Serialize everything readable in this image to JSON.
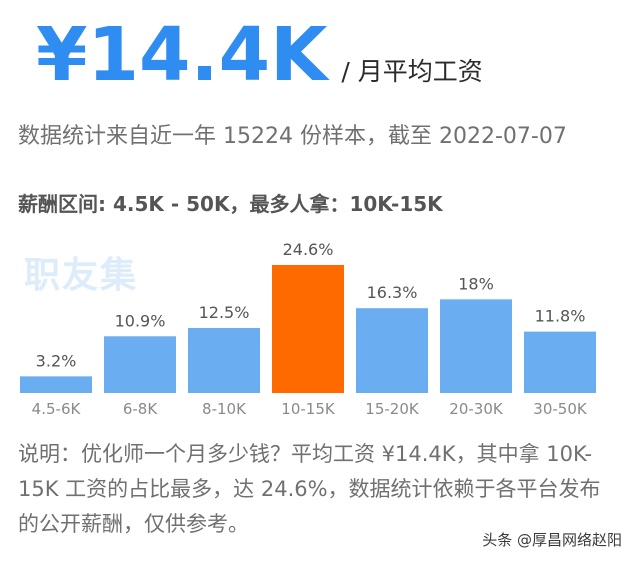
{
  "hero": {
    "amount": "¥14.4K",
    "unit": "/ 月平均工资"
  },
  "subtitle": "数据统计来自近一年 15224 份样本，截至 2022-07-07",
  "salary_range": "薪酬区间: 4.5K - 50K，最多人拿：10K-15K",
  "watermark": "职友集",
  "note": "说明：优化师一个月多少钱？平均工资 ¥14.4K，其中拿 10K-15K 工资的占比最多，达 24.6%，数据统计依赖于各平台发布的公开薪酬，仅供参考。",
  "footer": "头条 @厚昌网络赵阳",
  "colors": {
    "accent": "#2f8cf0",
    "bar": "#6aaef1",
    "highlight_bar": "#ff6a00",
    "label": "#8a8a8a",
    "value_label": "#555555"
  },
  "chart_data": {
    "type": "bar",
    "categories": [
      "4.5-6K",
      "6-8K",
      "8-10K",
      "10-15K",
      "15-20K",
      "20-30K",
      "30-50K"
    ],
    "values": [
      3.2,
      10.9,
      12.5,
      24.6,
      16.3,
      18,
      11.8
    ],
    "value_labels": [
      "3.2%",
      "10.9%",
      "12.5%",
      "24.6%",
      "16.3%",
      "18%",
      "11.8%"
    ],
    "highlight_index": 3,
    "ylim": [
      0,
      24.6
    ],
    "title": "",
    "xlabel": "",
    "ylabel": "",
    "grid": false,
    "legend": false
  }
}
